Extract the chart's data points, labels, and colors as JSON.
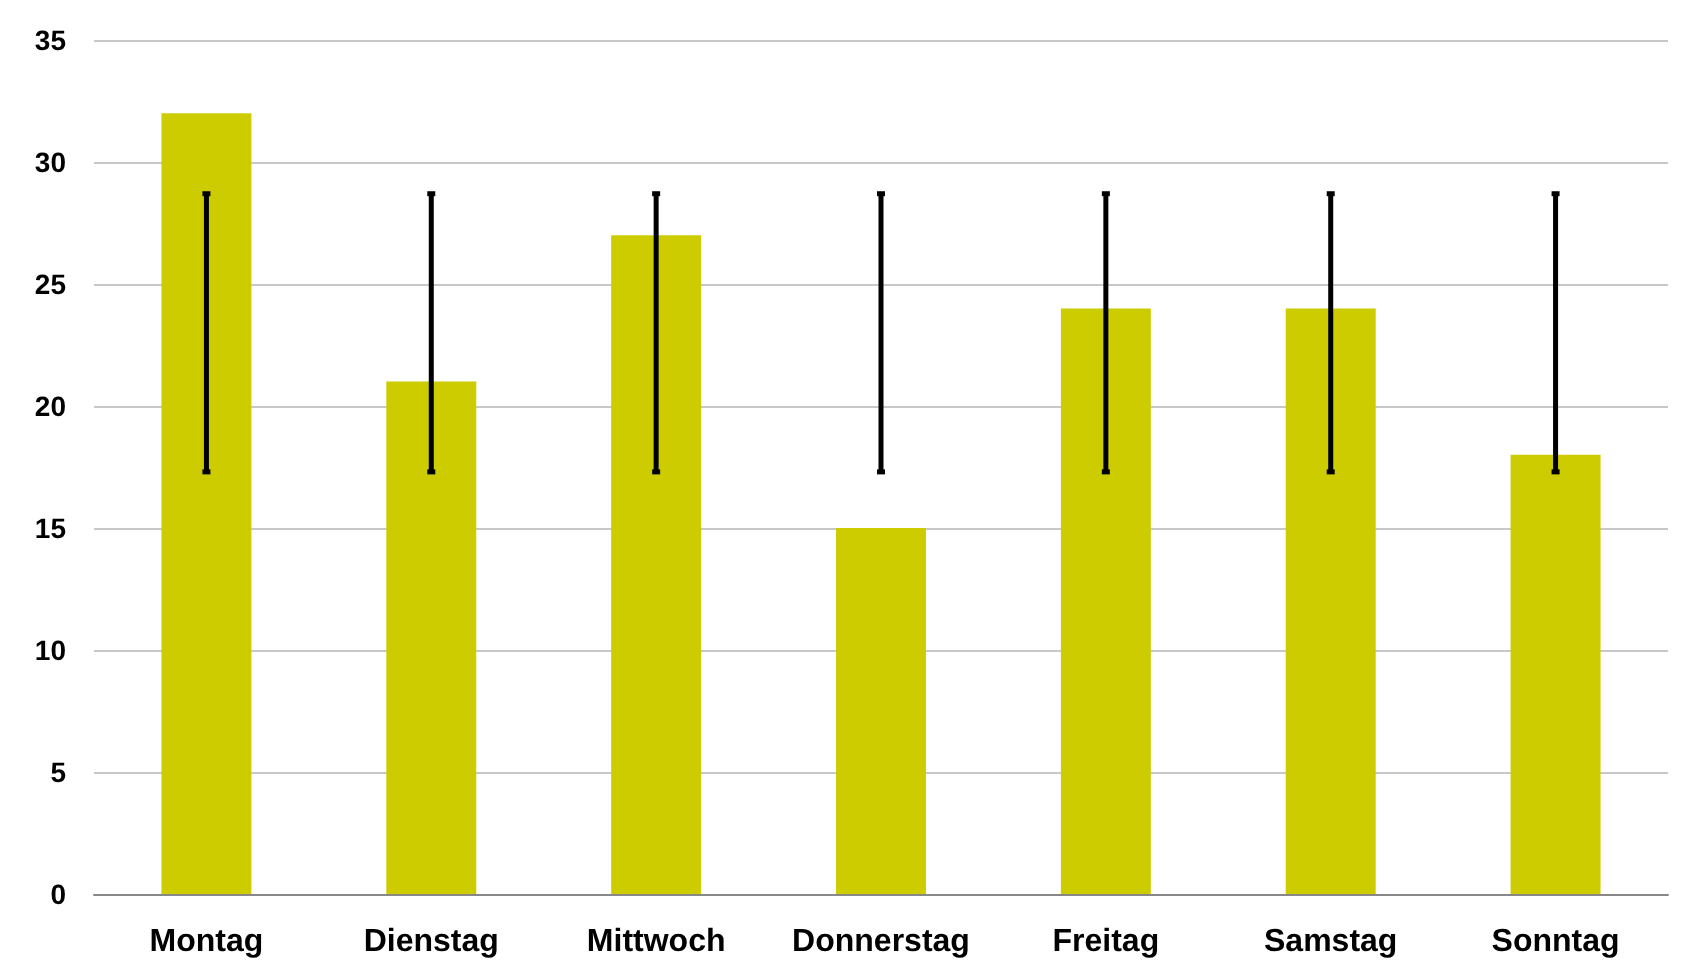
{
  "chart_data": {
    "type": "bar",
    "categories": [
      "Montag",
      "Dienstag",
      "Mittwoch",
      "Donnerstag",
      "Freitag",
      "Samstag",
      "Sonntag"
    ],
    "series": [
      {
        "color": "#cccc00",
        "values": [
          32,
          21,
          27,
          15,
          24,
          24,
          18
        ],
        "errors": [
          [
            17.3,
            28.7
          ],
          [
            17.3,
            28.7
          ],
          [
            17.3,
            28.7
          ],
          [
            17.3,
            28.7
          ],
          [
            17.3,
            28.7
          ],
          [
            17.3,
            28.7
          ],
          [
            17.3,
            28.7
          ]
        ]
      }
    ],
    "ylim": [
      0,
      35
    ],
    "yticks": [
      0,
      5,
      10,
      15,
      20,
      25,
      30,
      35
    ],
    "grid": "y"
  }
}
